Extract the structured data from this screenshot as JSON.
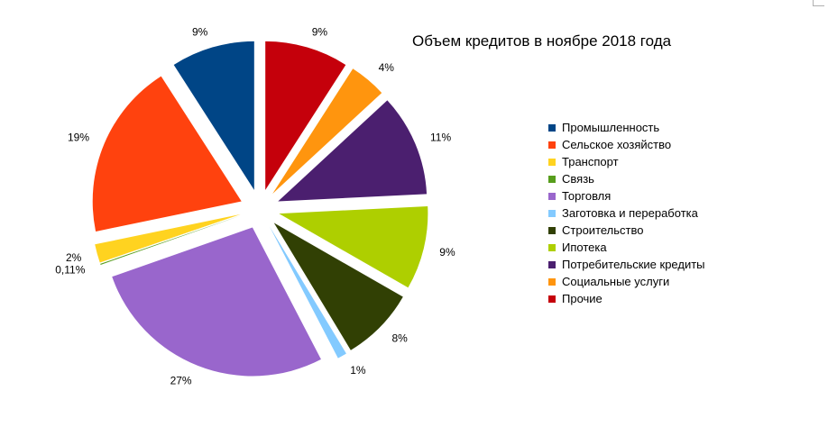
{
  "chart_data": {
    "type": "pie",
    "title": "Объем кредитов в ноябре 2018 года",
    "legend_position": "right",
    "series": [
      {
        "name": "Промышленность",
        "value": 9,
        "label": "9%",
        "color": "#004586"
      },
      {
        "name": "Сельское хозяйство",
        "value": 19,
        "label": "19%",
        "color": "#ff420e"
      },
      {
        "name": "Транспорт",
        "value": 2,
        "label": "2%",
        "color": "#ffd320"
      },
      {
        "name": "Связь",
        "value": 0.11,
        "label": "0,11%",
        "color": "#579d1c"
      },
      {
        "name": "Торговля",
        "value": 27,
        "label": "27%",
        "color": "#9966cc"
      },
      {
        "name": "Заготовка и переработка",
        "value": 1,
        "label": "1%",
        "color": "#83caff"
      },
      {
        "name": "Строительство",
        "value": 8,
        "label": "8%",
        "color": "#314004"
      },
      {
        "name": "Ипотека",
        "value": 9,
        "label": "9%",
        "color": "#aecf00"
      },
      {
        "name": "Потребительские кредиты",
        "value": 11,
        "label": "11%",
        "color": "#4b1f6f"
      },
      {
        "name": "Социальные услуги",
        "value": 4,
        "label": "4%",
        "color": "#ff950e"
      },
      {
        "name": "Прочие",
        "value": 9,
        "label": "9%",
        "color": "#c5000b"
      }
    ]
  }
}
